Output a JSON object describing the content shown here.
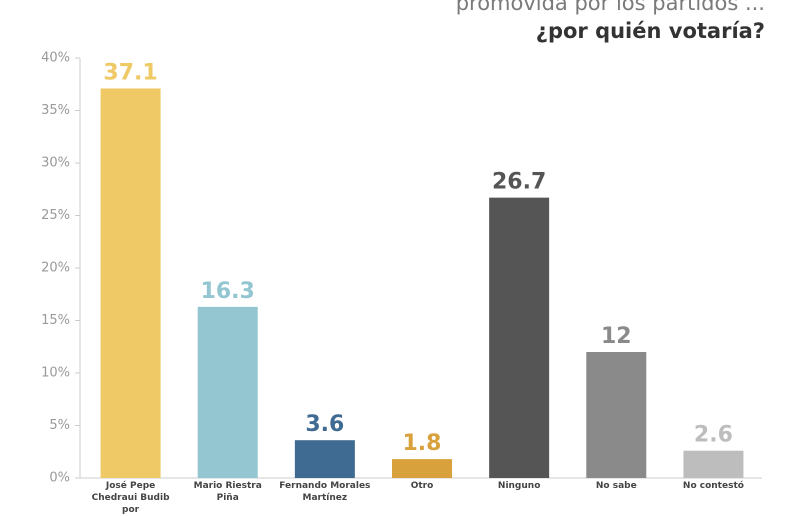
{
  "chart_data": {
    "type": "bar",
    "title": "promovida por los partidos ...",
    "subtitle": "¿por quién votaría?",
    "categories": [
      "José Pepe Chedraui Budib por",
      "Mario Riestra Piña",
      "Fernando Morales Martínez",
      "Otro",
      "Ninguno",
      "No sabe",
      "No contestó"
    ],
    "values": [
      37.1,
      16.3,
      3.6,
      1.8,
      26.7,
      12,
      2.6
    ],
    "colors": [
      "#eec965",
      "#93c6d1",
      "#3f6b92",
      "#d8a13c",
      "#555555",
      "#8a8a8a",
      "#bdbdbd"
    ],
    "ylim": [
      0,
      40
    ],
    "yticks": [
      {
        "value": 0,
        "label": "0%"
      },
      {
        "value": 5,
        "label": "5%"
      },
      {
        "value": 10,
        "label": "10%"
      },
      {
        "value": 15,
        "label": "15%"
      },
      {
        "value": 20,
        "label": "20%"
      },
      {
        "value": 25,
        "label": "25%"
      },
      {
        "value": 30,
        "label": "30%"
      },
      {
        "value": 35,
        "label": "35%"
      },
      {
        "value": 40,
        "label": "40%"
      }
    ],
    "grid": false
  }
}
